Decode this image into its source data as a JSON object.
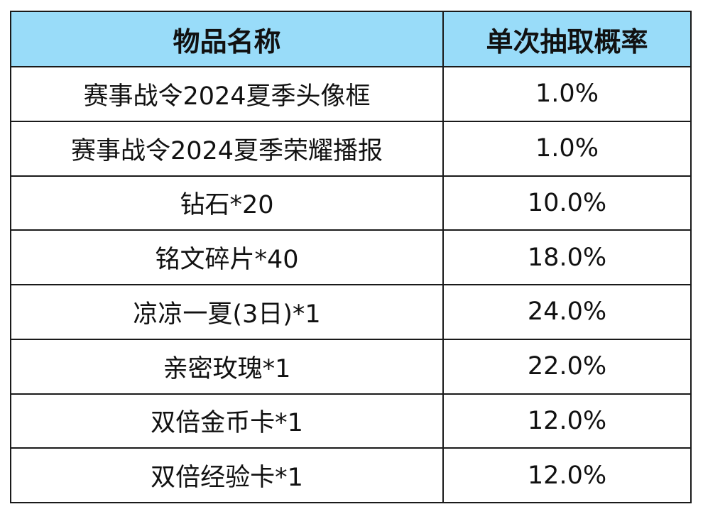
{
  "table": {
    "header": {
      "item_name": "物品名称",
      "single_draw_probability": "单次抽取概率"
    },
    "rows": [
      {
        "name": "赛事战令2024夏季头像框",
        "probability": "1.0%"
      },
      {
        "name": "赛事战令2024夏季荣耀播报",
        "probability": "1.0%"
      },
      {
        "name": "钻石*20",
        "probability": "10.0%"
      },
      {
        "name": "铭文碎片*40",
        "probability": "18.0%"
      },
      {
        "name": "凉凉一夏(3日)*1",
        "probability": "24.0%"
      },
      {
        "name": "亲密玫瑰*1",
        "probability": "22.0%"
      },
      {
        "name": "双倍金币卡*1",
        "probability": "12.0%"
      },
      {
        "name": "双倍经验卡*1",
        "probability": "12.0%"
      }
    ]
  },
  "colors": {
    "header_background": "#99dcf9",
    "border": "#1a1a1a",
    "text": "#111111"
  }
}
